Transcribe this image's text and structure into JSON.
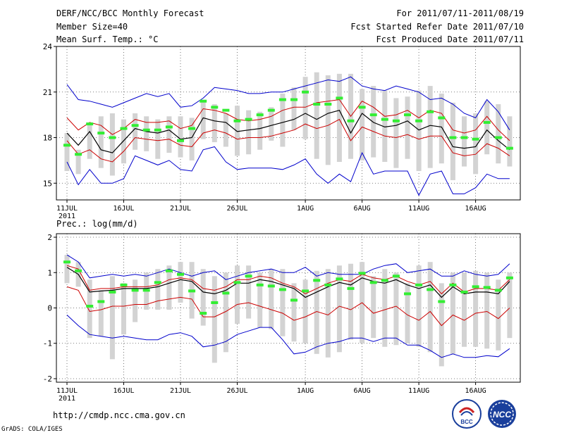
{
  "header": {
    "title": "DERF/NCC/BCC Monthly Forecast",
    "member_size": "Member Size=40",
    "variable": "Mean Surf. Temp.: °C",
    "period": "For 2011/07/11-2011/08/19",
    "started": "Fcst Started Refer Date 2011/07/10",
    "produced": "Fcst Produced Date 2011/07/11"
  },
  "footer": {
    "url": "http://cmdp.ncc.cma.gov.cn",
    "credit": "GrADS: COLA/IGES"
  },
  "logos": {
    "bcc": "BCC",
    "ncc": "NCC"
  },
  "colors": {
    "max_min": "#0000cc",
    "spread": "#cc0000",
    "mean": "#000000",
    "box": "#d3d3d3",
    "median": "#33ee33",
    "grid": "#555555"
  },
  "chart_data": [
    {
      "type": "line",
      "name": "temperature",
      "title": "",
      "ylabel": "Mean Surf. Temp.: °C",
      "ylim": [
        13.9,
        24
      ],
      "yticks": [
        15,
        18,
        21,
        24
      ],
      "x_tick_labels": [
        "11JUL",
        "16JUL",
        "21JUL",
        "26JUL",
        "1AUG",
        "6AUG",
        "11AUG",
        "16AUG"
      ],
      "x_tick_days": [
        0,
        5,
        10,
        15,
        21,
        26,
        31,
        36
      ],
      "year_label": "2011",
      "days": 40,
      "max": [
        21.5,
        20.5,
        20.4,
        20.2,
        20.0,
        20.3,
        20.6,
        20.9,
        20.7,
        20.9,
        20.0,
        20.1,
        20.6,
        21.3,
        21.2,
        21.1,
        20.9,
        20.9,
        21.0,
        21.0,
        21.2,
        21.4,
        21.6,
        21.8,
        21.7,
        22.0,
        21.4,
        21.2,
        21.1,
        21.4,
        21.2,
        21.0,
        20.5,
        20.6,
        20.2,
        19.6,
        19.3,
        20.5,
        19.7,
        18.5
      ],
      "upper": [
        19.3,
        18.5,
        19.0,
        18.8,
        18.2,
        18.6,
        19.2,
        19.0,
        19.0,
        19.1,
        18.6,
        18.8,
        19.9,
        19.8,
        19.6,
        19.2,
        19.1,
        19.2,
        19.4,
        19.8,
        20.0,
        20.0,
        20.3,
        20.4,
        20.5,
        19.4,
        20.4,
        20.0,
        19.4,
        19.5,
        19.8,
        19.3,
        19.8,
        19.6,
        18.5,
        18.3,
        18.5,
        19.4,
        18.5,
        17.8
      ],
      "mean": [
        18.3,
        17.5,
        18.4,
        17.2,
        17.0,
        17.8,
        18.6,
        18.4,
        18.3,
        18.5,
        17.9,
        18.0,
        19.3,
        19.1,
        19.0,
        18.4,
        18.5,
        18.6,
        18.8,
        19.0,
        19.2,
        19.6,
        19.2,
        19.6,
        19.8,
        18.3,
        19.6,
        19.0,
        18.7,
        18.8,
        19.1,
        18.5,
        18.8,
        18.7,
        17.4,
        17.3,
        17.4,
        18.5,
        17.8,
        17.2
      ],
      "lower": [
        17.8,
        16.9,
        17.2,
        16.6,
        16.4,
        17.1,
        18.0,
        17.9,
        17.8,
        17.9,
        17.5,
        17.4,
        18.3,
        18.5,
        18.3,
        17.9,
        18.0,
        18.0,
        18.1,
        18.3,
        18.5,
        18.9,
        18.6,
        18.8,
        19.2,
        17.8,
        18.7,
        18.4,
        18.1,
        18.0,
        18.2,
        17.9,
        18.1,
        18.1,
        17.0,
        16.8,
        16.9,
        17.6,
        17.3,
        16.8
      ],
      "min": [
        16.4,
        14.9,
        15.9,
        15.0,
        15.0,
        15.3,
        16.8,
        16.5,
        16.2,
        16.5,
        15.9,
        15.8,
        17.2,
        17.4,
        16.4,
        15.9,
        16.0,
        16.0,
        16.0,
        15.9,
        16.2,
        16.6,
        15.6,
        15.0,
        15.6,
        15.1,
        17.0,
        15.6,
        15.8,
        15.8,
        15.8,
        14.2,
        15.6,
        15.8,
        14.3,
        14.3,
        14.7,
        15.6,
        15.3,
        15.3
      ],
      "box_hi": [
        18.3,
        17.2,
        19.0,
        19.4,
        19.6,
        19.2,
        19.6,
        19.4,
        19.2,
        19.4,
        19.4,
        19.3,
        20.4,
        20.2,
        19.6,
        20.1,
        19.8,
        19.7,
        20.0,
        20.9,
        21.3,
        22.0,
        22.3,
        22.1,
        22.2,
        22.2,
        21.2,
        21.4,
        21.1,
        20.6,
        20.7,
        21.1,
        21.4,
        20.9,
        20.3,
        19.4,
        19.6,
        20.4,
        20.2,
        19.4
      ],
      "box_lo": [
        15.8,
        15.6,
        16.6,
        16.0,
        15.5,
        16.3,
        17.2,
        17.1,
        16.6,
        17.0,
        16.7,
        16.5,
        17.9,
        17.7,
        17.4,
        16.8,
        16.9,
        17.2,
        17.8,
        17.4,
        18.5,
        17.9,
        16.6,
        16.2,
        16.4,
        16.6,
        16.5,
        16.7,
        16.4,
        16.0,
        16.6,
        15.8,
        16.0,
        16.3,
        15.2,
        16.1,
        15.6,
        16.9,
        16.3,
        16.1
      ],
      "median": [
        17.5,
        16.9,
        18.9,
        18.3,
        18.0,
        18.6,
        18.8,
        18.5,
        18.5,
        18.7,
        17.8,
        18.6,
        20.4,
        20.0,
        19.8,
        19.1,
        19.2,
        19.5,
        19.8,
        20.5,
        20.5,
        21.0,
        20.2,
        20.2,
        20.6,
        19.1,
        20.0,
        19.5,
        19.2,
        19.1,
        19.5,
        19.1,
        19.7,
        19.3,
        18.0,
        18.0,
        17.9,
        19.0,
        18.0,
        17.3
      ]
    },
    {
      "type": "line",
      "name": "precipitation",
      "title": "",
      "ylabel": "Prec.: log(mm/d)",
      "ylim": [
        -2.1,
        2.1
      ],
      "yticks": [
        -2,
        -1,
        0,
        1,
        2
      ],
      "x_tick_labels": [
        "11JUL",
        "16JUL",
        "21JUL",
        "26JUL",
        "1AUG",
        "6AUG",
        "11AUG",
        "16AUG"
      ],
      "x_tick_days": [
        0,
        5,
        10,
        15,
        21,
        26,
        31,
        36
      ],
      "year_label": "2011",
      "days": 40,
      "max": [
        1.5,
        1.3,
        0.85,
        0.9,
        0.95,
        0.9,
        0.95,
        0.9,
        1.0,
        1.1,
        1.0,
        0.9,
        1.0,
        1.05,
        0.8,
        0.9,
        1.0,
        1.05,
        1.1,
        1.0,
        1.0,
        1.15,
        0.9,
        1.0,
        0.95,
        0.95,
        0.95,
        1.1,
        1.2,
        1.25,
        1.0,
        1.05,
        1.1,
        0.9,
        0.9,
        1.05,
        0.95,
        0.9,
        0.95,
        1.25
      ],
      "upper": [
        1.2,
        1.1,
        0.5,
        0.55,
        0.55,
        0.6,
        0.6,
        0.6,
        0.65,
        0.8,
        0.85,
        0.8,
        0.55,
        0.5,
        0.6,
        0.8,
        0.8,
        0.9,
        0.85,
        0.7,
        0.6,
        0.4,
        0.55,
        0.7,
        0.8,
        0.75,
        0.95,
        0.85,
        0.8,
        0.9,
        0.75,
        0.65,
        0.75,
        0.4,
        0.7,
        0.45,
        0.55,
        0.55,
        0.5,
        0.8
      ],
      "mean": [
        1.15,
        0.95,
        0.45,
        0.48,
        0.5,
        0.55,
        0.55,
        0.55,
        0.6,
        0.7,
        0.8,
        0.75,
        0.45,
        0.4,
        0.5,
        0.7,
        0.7,
        0.8,
        0.75,
        0.65,
        0.55,
        0.3,
        0.45,
        0.6,
        0.72,
        0.65,
        0.85,
        0.75,
        0.7,
        0.8,
        0.65,
        0.55,
        0.65,
        0.3,
        0.6,
        0.4,
        0.45,
        0.45,
        0.4,
        0.75
      ],
      "lower": [
        0.6,
        0.5,
        -0.1,
        -0.05,
        0.05,
        0.05,
        0.1,
        0.1,
        0.2,
        0.25,
        0.3,
        0.25,
        -0.25,
        -0.25,
        -0.1,
        0.1,
        0.15,
        0.05,
        -0.05,
        -0.15,
        -0.35,
        -0.25,
        -0.1,
        -0.2,
        0.05,
        -0.05,
        0.15,
        -0.15,
        -0.05,
        0.05,
        -0.2,
        -0.35,
        -0.1,
        -0.5,
        -0.2,
        -0.35,
        -0.15,
        -0.1,
        -0.3,
        0.0
      ],
      "min": [
        -0.2,
        -0.5,
        -0.75,
        -0.8,
        -0.85,
        -0.8,
        -0.85,
        -0.9,
        -0.9,
        -0.75,
        -0.7,
        -0.8,
        -1.1,
        -1.05,
        -0.95,
        -0.75,
        -0.65,
        -0.55,
        -0.55,
        -0.9,
        -1.3,
        -1.25,
        -1.1,
        -1.0,
        -0.95,
        -0.85,
        -0.85,
        -0.95,
        -0.85,
        -0.85,
        -1.05,
        -1.05,
        -1.2,
        -1.4,
        -1.3,
        -1.4,
        -1.4,
        -1.35,
        -1.38,
        -1.15
      ],
      "box_hi": [
        1.5,
        1.3,
        0.8,
        0.5,
        0.9,
        0.7,
        0.8,
        1.0,
        1.1,
        1.2,
        1.3,
        1.3,
        1.1,
        0.9,
        1.0,
        1.2,
        1.2,
        1.0,
        1.1,
        1.1,
        0.7,
        0.8,
        1.05,
        1.1,
        1.2,
        1.25,
        1.3,
        0.9,
        1.1,
        1.0,
        0.7,
        1.2,
        1.3,
        0.7,
        1.0,
        1.0,
        1.05,
        1.0,
        0.8,
        1.0
      ],
      "box_lo": [
        0.7,
        0.6,
        -0.85,
        -0.8,
        -1.45,
        -0.75,
        -0.4,
        -0.05,
        -0.05,
        -0.05,
        0.15,
        -0.3,
        -0.5,
        -1.55,
        -1.25,
        -0.45,
        -0.3,
        -0.55,
        -0.6,
        -0.8,
        -0.95,
        -1.0,
        -1.3,
        -1.4,
        -1.25,
        -0.9,
        -1.0,
        -0.85,
        -1.1,
        -1.05,
        -1.0,
        -1.1,
        -1.25,
        -1.65,
        -1.3,
        -1.1,
        -1.1,
        -1.15,
        -1.2,
        -0.85
      ],
      "median": [
        1.3,
        1.05,
        0.05,
        0.18,
        0.45,
        0.65,
        0.5,
        0.5,
        0.72,
        1.05,
        0.95,
        0.48,
        -0.15,
        0.15,
        0.42,
        0.72,
        0.9,
        0.65,
        0.62,
        0.52,
        0.22,
        0.48,
        0.78,
        0.65,
        0.82,
        0.55,
        0.98,
        0.72,
        0.78,
        0.9,
        0.4,
        0.65,
        0.52,
        0.18,
        0.65,
        0.45,
        0.6,
        0.58,
        0.5,
        0.85
      ]
    }
  ]
}
